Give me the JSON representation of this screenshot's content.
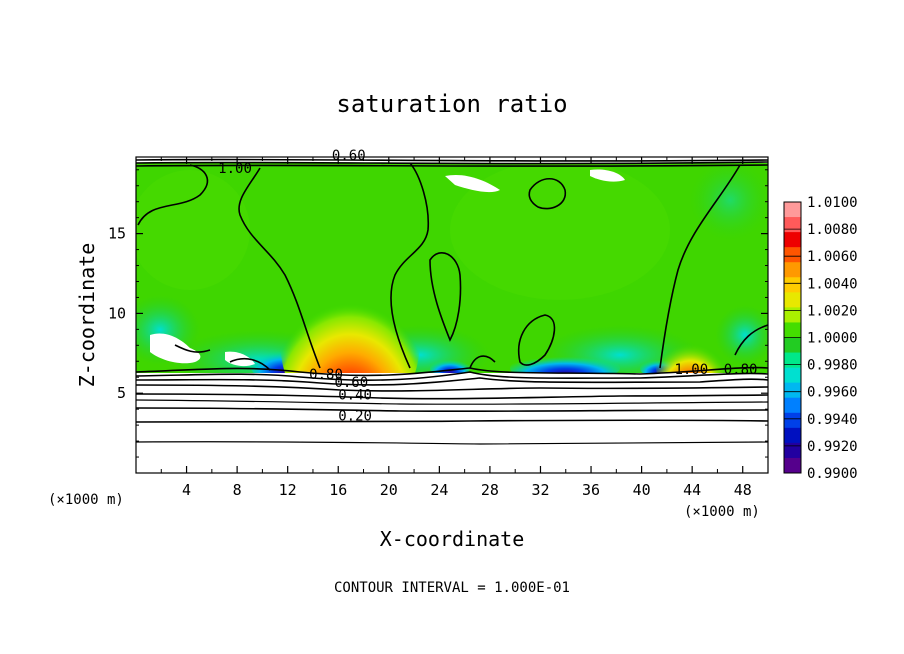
{
  "chart_data": {
    "type": "heatmap",
    "title": "saturation ratio",
    "xlabel": "X-coordinate",
    "ylabel": "Z-coordinate",
    "x_unit_note": "(×1000 m)",
    "x_ticks": [
      "4",
      "8",
      "12",
      "16",
      "20",
      "24",
      "28",
      "32",
      "36",
      "40",
      "44",
      "48"
    ],
    "y_ticks": [
      "5",
      "10",
      "15"
    ],
    "xlim": [
      0,
      50
    ],
    "ylim": [
      0,
      19.8
    ],
    "footer": "CONTOUR INTERVAL = 1.000E-01",
    "colorbar": {
      "labels": [
        "1.0100",
        "1.0080",
        "1.0060",
        "1.0040",
        "1.0020",
        "1.0000",
        "0.9980",
        "0.9960",
        "0.9940",
        "0.9920",
        "0.9900"
      ],
      "colors": [
        "#ff9a9a",
        "#ff5a5a",
        "#ee0000",
        "#ff5500",
        "#ff9900",
        "#ffcc00",
        "#e8e800",
        "#aaf000",
        "#44dd00",
        "#22cc22",
        "#00e88a",
        "#00e0d0",
        "#00b8f0",
        "#0080ff",
        "#0040e8",
        "#0010c0",
        "#2200a0",
        "#55008c"
      ]
    },
    "contour_labels": [
      {
        "text": "1.00",
        "x": 6.5,
        "z": 18.8
      },
      {
        "text": "0.60",
        "x": 15.5,
        "z": 19.6
      },
      {
        "text": "0.80",
        "x": 13.7,
        "z": 5.9
      },
      {
        "text": "0.60",
        "x": 15.7,
        "z": 5.4
      },
      {
        "text": "0.40",
        "x": 16.0,
        "z": 4.6
      },
      {
        "text": "0.20",
        "x": 16.0,
        "z": 3.3
      },
      {
        "text": "1.00",
        "x": 42.6,
        "z": 6.2
      },
      {
        "text": "0.80",
        "x": 46.5,
        "z": 6.2
      }
    ]
  }
}
